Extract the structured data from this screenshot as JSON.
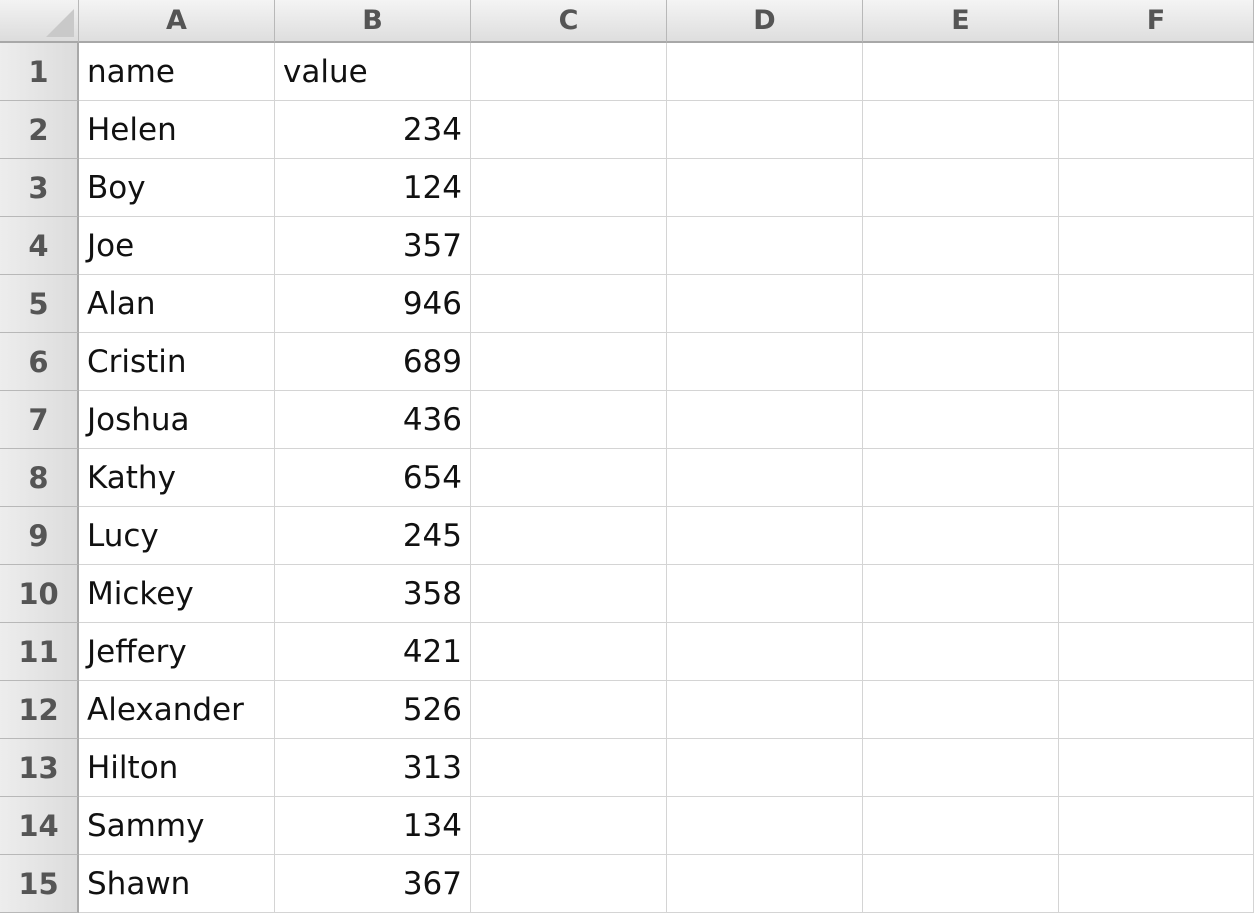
{
  "spreadsheet": {
    "columns": [
      "A",
      "B",
      "C",
      "D",
      "E",
      "F"
    ],
    "row_numbers": [
      "1",
      "2",
      "3",
      "4",
      "5",
      "6",
      "7",
      "8",
      "9",
      "10",
      "11",
      "12",
      "13",
      "14",
      "15"
    ],
    "header_row": {
      "a": "name",
      "b": "value"
    },
    "rows": [
      {
        "name": "Helen",
        "value": "234"
      },
      {
        "name": "Boy",
        "value": "124"
      },
      {
        "name": "Joe",
        "value": "357"
      },
      {
        "name": "Alan",
        "value": "946"
      },
      {
        "name": "Cristin",
        "value": "689"
      },
      {
        "name": "Joshua",
        "value": "436"
      },
      {
        "name": "Kathy",
        "value": "654"
      },
      {
        "name": "Lucy",
        "value": "245"
      },
      {
        "name": "Mickey",
        "value": "358"
      },
      {
        "name": "Jeffery",
        "value": "421"
      },
      {
        "name": "Alexander",
        "value": "526"
      },
      {
        "name": "Hilton",
        "value": "313"
      },
      {
        "name": "Sammy",
        "value": "134"
      },
      {
        "name": "Shawn",
        "value": "367"
      }
    ]
  },
  "colors": {
    "header_text": "#555555",
    "cell_text": "#111111",
    "gridline": "#d4d4d4"
  }
}
